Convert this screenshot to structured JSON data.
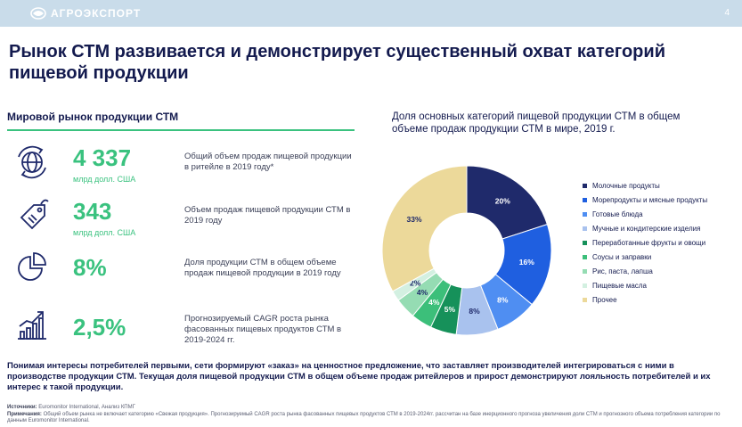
{
  "header": {
    "logo_text": "АГРОЭКСПОРТ",
    "page_number": "4"
  },
  "title": "Рынок СТМ развивается и демонстрирует существенный охват категорий пищевой продукции",
  "left": {
    "heading": "Мировой рынок продукции СТМ",
    "stats": [
      {
        "icon": "globe-money-icon",
        "value": "4 337",
        "unit": "млрд долл. США",
        "desc": "Общий объем продаж пищевой продукции в ритейле в 2019 году*"
      },
      {
        "icon": "price-tag-icon",
        "value": "343",
        "unit": "млрд долл. США",
        "desc": "Объем продаж пищевой продукции СТМ в 2019 году"
      },
      {
        "icon": "pie-chart-icon",
        "value": "8%",
        "unit": "",
        "desc": "Доля продукции СТМ в общем объеме продаж пищевой продукции в 2019 году"
      },
      {
        "icon": "growth-chart-icon",
        "value": "2,5%",
        "unit": "",
        "desc": "Прогнозируемый CAGR роста рынка фасованных пищевых продуктов СТМ в 2019-2024 гг."
      }
    ]
  },
  "chart_data": {
    "type": "pie",
    "title": "Доля основных категорий пищевой продукции СТМ в общем объеме продаж продукции СТМ в мире, 2019 г.",
    "categories": [
      "Молочные продукты",
      "Морепродукты и мясные продукты",
      "Готовые блюда",
      "Мучные и кондитерские изделия",
      "Переработанные фрукты и овощи",
      "Соусы и заправки",
      "Рис, паста, лапша",
      "Пищевые масла",
      "Прочее"
    ],
    "values": [
      20,
      16,
      8,
      8,
      5,
      4,
      4,
      2,
      33
    ],
    "labels": [
      "20%",
      "16%",
      "8%",
      "8%",
      "5%",
      "4%",
      "4%",
      "2%",
      "33%"
    ],
    "colors": [
      "#1f2a6b",
      "#1f5fe0",
      "#4f8ef2",
      "#a9c2ee",
      "#16915a",
      "#3cbf7a",
      "#95dcb3",
      "#d3f0e1",
      "#ecd99a"
    ],
    "label_colors": [
      "#ffffff",
      "#ffffff",
      "#ffffff",
      "#1f2a6b",
      "#ffffff",
      "#ffffff",
      "#1f2a6b",
      "#1f2a6b",
      "#1f2a6b"
    ],
    "legend": "right",
    "donut": true
  },
  "bottom_text": "Понимая интересы потребителей первыми, сети формируют «заказ» на ценностное предложение, что заставляет производителей интегрироваться с ними в производстве продукции СТМ. Текущая доля пищевой продукции СТМ в общем объеме продаж ритейлеров и прирост демонстрируют лояльность потребителей и их интерес к такой продукции.",
  "source": {
    "sources_label": "Источники:",
    "sources_text": "Euromonitor International, Анализ КПМГ",
    "notes_label": "Примечания:",
    "notes_text": "Общий объем рынка не включает категорию «Свежая продукция». Прогнозируемый CAGR роста рынка фасованных пищевых продуктов СТМ в 2019-2024гг. рассчитан на базе инерционного прогноза увеличения доли СТМ и прогнозного объема потребления категории по данным Euromonitor International."
  }
}
